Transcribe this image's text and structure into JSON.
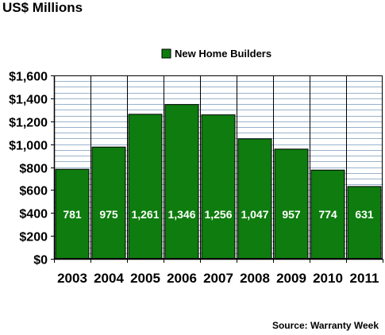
{
  "chart_data": {
    "type": "bar",
    "title": "US$ Millions",
    "source": "Source: Warranty Week",
    "categories": [
      "2003",
      "2004",
      "2005",
      "2006",
      "2007",
      "2008",
      "2009",
      "2010",
      "2011"
    ],
    "series": [
      {
        "name": "New Home Builders",
        "values": [
          781,
          975,
          1261,
          1346,
          1256,
          1047,
          957,
          774,
          631
        ],
        "data_labels": [
          "781",
          "975",
          "1,261",
          "1,346",
          "1,256",
          "1,047",
          "957",
          "774",
          "631"
        ]
      }
    ],
    "ylim": [
      0,
      1600
    ],
    "yticks": [
      0,
      200,
      400,
      600,
      800,
      1000,
      1200,
      1400,
      1600
    ],
    "ytick_labels": [
      "$0",
      "$200",
      "$400",
      "$600",
      "$800",
      "$1,000",
      "$1,200",
      "$1,400",
      "$1,600"
    ],
    "grid": true,
    "minor_grid_step": 50,
    "legend_position": "top",
    "colors": {
      "bar": "#0e7c0e",
      "plot_background": "#ffffff",
      "grid": "#99b3cc",
      "axis": "#000000"
    }
  }
}
